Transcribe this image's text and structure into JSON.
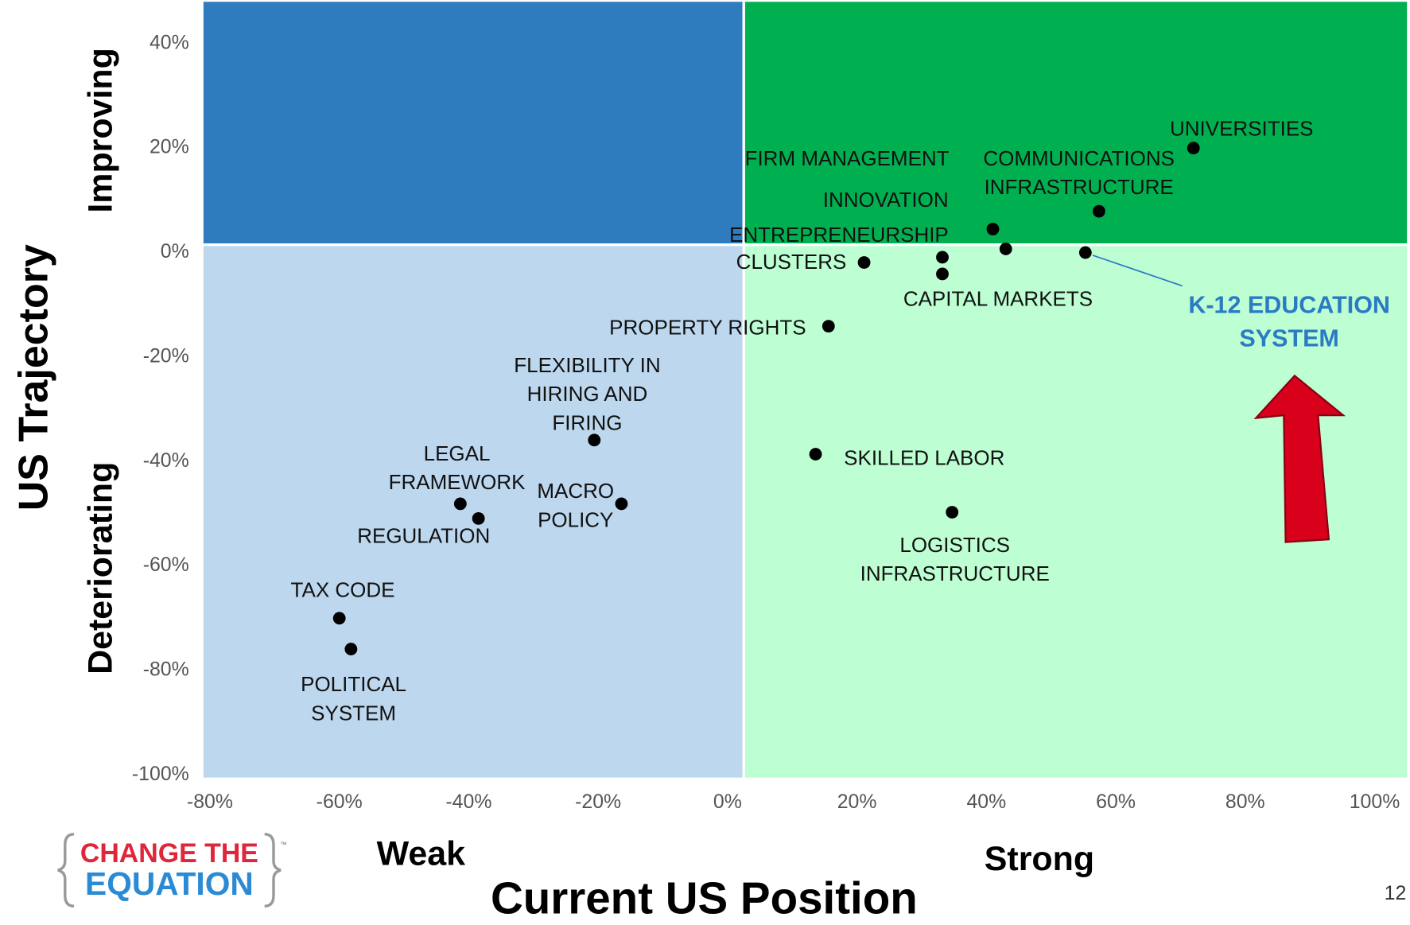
{
  "chart_data": {
    "type": "scatter",
    "y_title": "US Trajectory",
    "y_sublabels": [
      "Improving",
      "Deteriorating"
    ],
    "x_title": "Current US Position",
    "x_sublabels": [
      "Weak",
      "Strong"
    ],
    "xlim": [
      -81,
      105
    ],
    "ylim": [
      -100.5,
      48
    ],
    "xticks": [
      {
        "value": -80,
        "label": "-80%"
      },
      {
        "value": -60,
        "label": "-60%"
      },
      {
        "value": -40,
        "label": "-40%"
      },
      {
        "value": -20,
        "label": "-20%"
      },
      {
        "value": 0,
        "label": "0%"
      },
      {
        "value": 20,
        "label": "20%"
      },
      {
        "value": 40,
        "label": "40%"
      },
      {
        "value": 60,
        "label": "60%"
      },
      {
        "value": 80,
        "label": "80%"
      },
      {
        "value": 100,
        "label": "100%"
      }
    ],
    "yticks": [
      {
        "value": 40,
        "label": "40%"
      },
      {
        "value": 20,
        "label": "20%"
      },
      {
        "value": 0,
        "label": "0%"
      },
      {
        "value": -20,
        "label": "-20%"
      },
      {
        "value": -40,
        "label": "-40%"
      },
      {
        "value": -60,
        "label": "-60%"
      },
      {
        "value": -80,
        "label": "-80%"
      },
      {
        "value": -100,
        "label": "-100%"
      }
    ],
    "quadrant_split": {
      "x": 2.5,
      "y": 1.5
    },
    "quadrant_colors": {
      "top_left": "#2e7bbd",
      "top_right": "#00b050",
      "bottom_left": "#bdd7ee",
      "bottom_right": "#bdfed3"
    },
    "point_color": "#000000",
    "highlight_color": "#2a7bc4",
    "points": [
      {
        "label": [
          "UNIVERSITIES"
        ],
        "x": 72,
        "y": 20
      },
      {
        "label": [
          "COMMUNICATIONS",
          "INFRASTRUCTURE"
        ],
        "x": 57.4,
        "y": 7.9
      },
      {
        "label": [
          "FIRM MANAGEMENT"
        ],
        "x": 41,
        "y": 4.5
      },
      {
        "label": [
          "INNOVATION"
        ],
        "x": 43,
        "y": 0.7
      },
      {
        "label": [
          "ENTREPRENEURSHIP"
        ],
        "x": 33.2,
        "y": -0.9
      },
      {
        "label": [
          "CLUSTERS"
        ],
        "x": 21.1,
        "y": -1.9
      },
      {
        "label": [
          "CAPITAL MARKETS"
        ],
        "x": 33.2,
        "y": -4.1
      },
      {
        "label": [
          "K-12 EDUCATION",
          "SYSTEM"
        ],
        "x": 55.3,
        "y": 0,
        "highlight": true
      },
      {
        "label": [
          "PROPERTY RIGHTS"
        ],
        "x": 15.6,
        "y": -14.1
      },
      {
        "label": [
          "FLEXIBILITY IN",
          "HIRING AND",
          "FIRING"
        ],
        "x": -20.6,
        "y": -35.9
      },
      {
        "label": [
          "SKILLED LABOR"
        ],
        "x": 13.6,
        "y": -38.6
      },
      {
        "label": [
          "LEGAL",
          "FRAMEWORK"
        ],
        "x": -41.3,
        "y": -48.1
      },
      {
        "label": [
          "REGULATION"
        ],
        "x": -38.5,
        "y": -50.9
      },
      {
        "label": [
          "MACRO",
          "POLICY"
        ],
        "x": -16.4,
        "y": -48.1
      },
      {
        "label": [
          "LOGISTICS",
          "INFRASTRUCTURE"
        ],
        "x": 34.7,
        "y": -49.7
      },
      {
        "label": [
          "TAX CODE"
        ],
        "x": -60,
        "y": -70
      },
      {
        "label": [
          "POLITICAL",
          "SYSTEM"
        ],
        "x": -58.2,
        "y": -75.9
      }
    ]
  },
  "logo": {
    "line1": "CHANGE THE",
    "line2": "EQUATION",
    "mark": "™"
  },
  "page_number": "12"
}
